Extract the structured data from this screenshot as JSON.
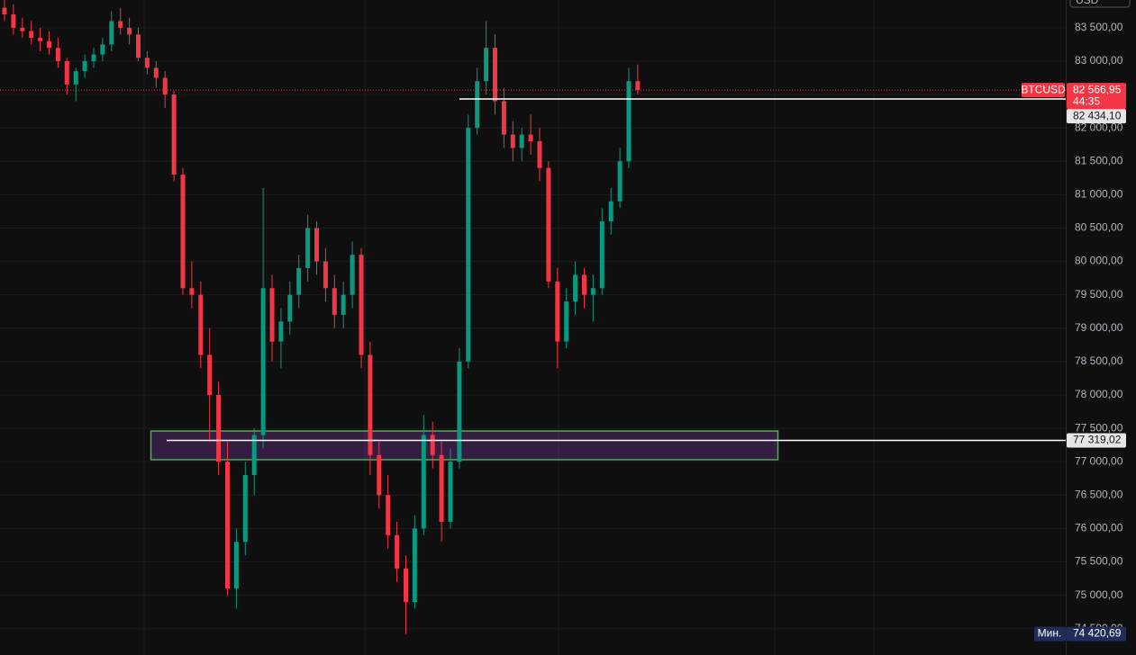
{
  "chart_data": {
    "type": "candlestick",
    "currency": "USD",
    "ylim": [
      74105,
      83916
    ],
    "yticks": [
      {
        "value": 74500,
        "label": "74 500,00"
      },
      {
        "value": 75000,
        "label": "75 000,00"
      },
      {
        "value": 75500,
        "label": "75 500,00"
      },
      {
        "value": 76000,
        "label": "76 000,00"
      },
      {
        "value": 76500,
        "label": "76 500,00"
      },
      {
        "value": 77000,
        "label": "77 000,00"
      },
      {
        "value": 77500,
        "label": "77 500,00"
      },
      {
        "value": 78000,
        "label": "78 000,00"
      },
      {
        "value": 78500,
        "label": "78 500,00"
      },
      {
        "value": 79000,
        "label": "79 000,00"
      },
      {
        "value": 79500,
        "label": "79 500,00"
      },
      {
        "value": 80000,
        "label": "80 000,00"
      },
      {
        "value": 80500,
        "label": "80 500,00"
      },
      {
        "value": 81000,
        "label": "81 000,00"
      },
      {
        "value": 81500,
        "label": "81 500,00"
      },
      {
        "value": 82000,
        "label": "82 000,00"
      },
      {
        "value": 82500,
        "label": "82 500,00"
      },
      {
        "value": 83000,
        "label": "83 000,00"
      },
      {
        "value": 83500,
        "label": "83 500,00"
      }
    ],
    "up_color": "#089981",
    "down_color": "#f23645",
    "open": [
      83800,
      83700,
      83500,
      83450,
      83350,
      83300,
      83200,
      83000,
      82650,
      82850,
      83000,
      83100,
      83250,
      83600,
      83500,
      83400,
      83050,
      82900,
      82750,
      82500,
      81300,
      79600,
      79500,
      78600,
      78000,
      77000,
      75100,
      75800,
      76800,
      77400,
      79600,
      78800,
      79100,
      79500,
      79900,
      80500,
      80000,
      79600,
      79200,
      79500,
      80100,
      78600,
      77100,
      76500,
      75900,
      75400,
      74900,
      76000,
      77400,
      77100,
      76100,
      77000,
      78500,
      82000,
      82700,
      83200,
      82400,
      81900,
      81700,
      81900,
      81800,
      81400,
      79700,
      78800,
      79400,
      79800,
      79500,
      79600,
      80600,
      80900,
      81500,
      82700
    ],
    "high": [
      84000,
      83850,
      83650,
      83600,
      83500,
      83450,
      83350,
      83050,
      82900,
      83100,
      83200,
      83350,
      83750,
      83800,
      83650,
      83500,
      83150,
      83000,
      82850,
      82550,
      81400,
      80000,
      79700,
      79000,
      78200,
      77300,
      76000,
      77000,
      77500,
      81100,
      79800,
      79300,
      79700,
      80100,
      80700,
      80600,
      80200,
      79800,
      79700,
      80300,
      80200,
      78800,
      77300,
      76800,
      76100,
      75600,
      76200,
      77700,
      77600,
      77300,
      77200,
      78700,
      82200,
      82900,
      83600,
      83400,
      82600,
      82100,
      82000,
      82200,
      82000,
      81500,
      79900,
      79600,
      80000,
      79900,
      79800,
      80800,
      81100,
      81700,
      82900,
      82950
    ],
    "low": [
      83600,
      83400,
      83350,
      83250,
      83150,
      83100,
      82900,
      82500,
      82400,
      82750,
      82900,
      83000,
      83150,
      83400,
      83250,
      83000,
      82800,
      82600,
      82300,
      81200,
      79500,
      79300,
      78400,
      77300,
      76800,
      75000,
      74800,
      75600,
      76500,
      77200,
      78500,
      78400,
      78900,
      79300,
      79700,
      79800,
      79400,
      79000,
      79000,
      79300,
      78400,
      76800,
      76300,
      75700,
      75200,
      74420.69,
      74800,
      75900,
      76900,
      75800,
      76000,
      76900,
      78400,
      81900,
      82500,
      82200,
      81700,
      81500,
      81500,
      81600,
      81200,
      79600,
      78400,
      78700,
      79200,
      79300,
      79100,
      79500,
      80400,
      80800,
      81400,
      82500
    ],
    "close": [
      83700,
      83500,
      83450,
      83350,
      83300,
      83200,
      83000,
      82650,
      82850,
      83000,
      83100,
      83250,
      83600,
      83500,
      83400,
      83050,
      82900,
      82750,
      82500,
      81300,
      79600,
      79500,
      78600,
      78000,
      77000,
      75100,
      75800,
      76800,
      77400,
      79600,
      78800,
      79100,
      79500,
      79900,
      80500,
      80000,
      79600,
      79200,
      79500,
      80100,
      78600,
      77100,
      76500,
      75900,
      75400,
      74900,
      76000,
      77400,
      77100,
      76100,
      77000,
      78500,
      82000,
      82700,
      83200,
      82400,
      81900,
      81700,
      81900,
      81800,
      81400,
      79700,
      78800,
      79400,
      79800,
      79500,
      79600,
      80600,
      80900,
      81500,
      82700,
      82566.95
    ],
    "last": {
      "symbol": "BTCUSD",
      "value": 82566.95,
      "label": "82 566,95",
      "countdown": "44:35"
    },
    "levels": [
      {
        "value": 82434.1,
        "label": "82 434,10"
      },
      {
        "value": 77319.02,
        "label": "77 319,02"
      }
    ],
    "zone": {
      "top": 77460,
      "bottom": 77030
    },
    "min": {
      "tag": "Мин.",
      "value": 74420.69,
      "label": "74 420,69"
    }
  }
}
